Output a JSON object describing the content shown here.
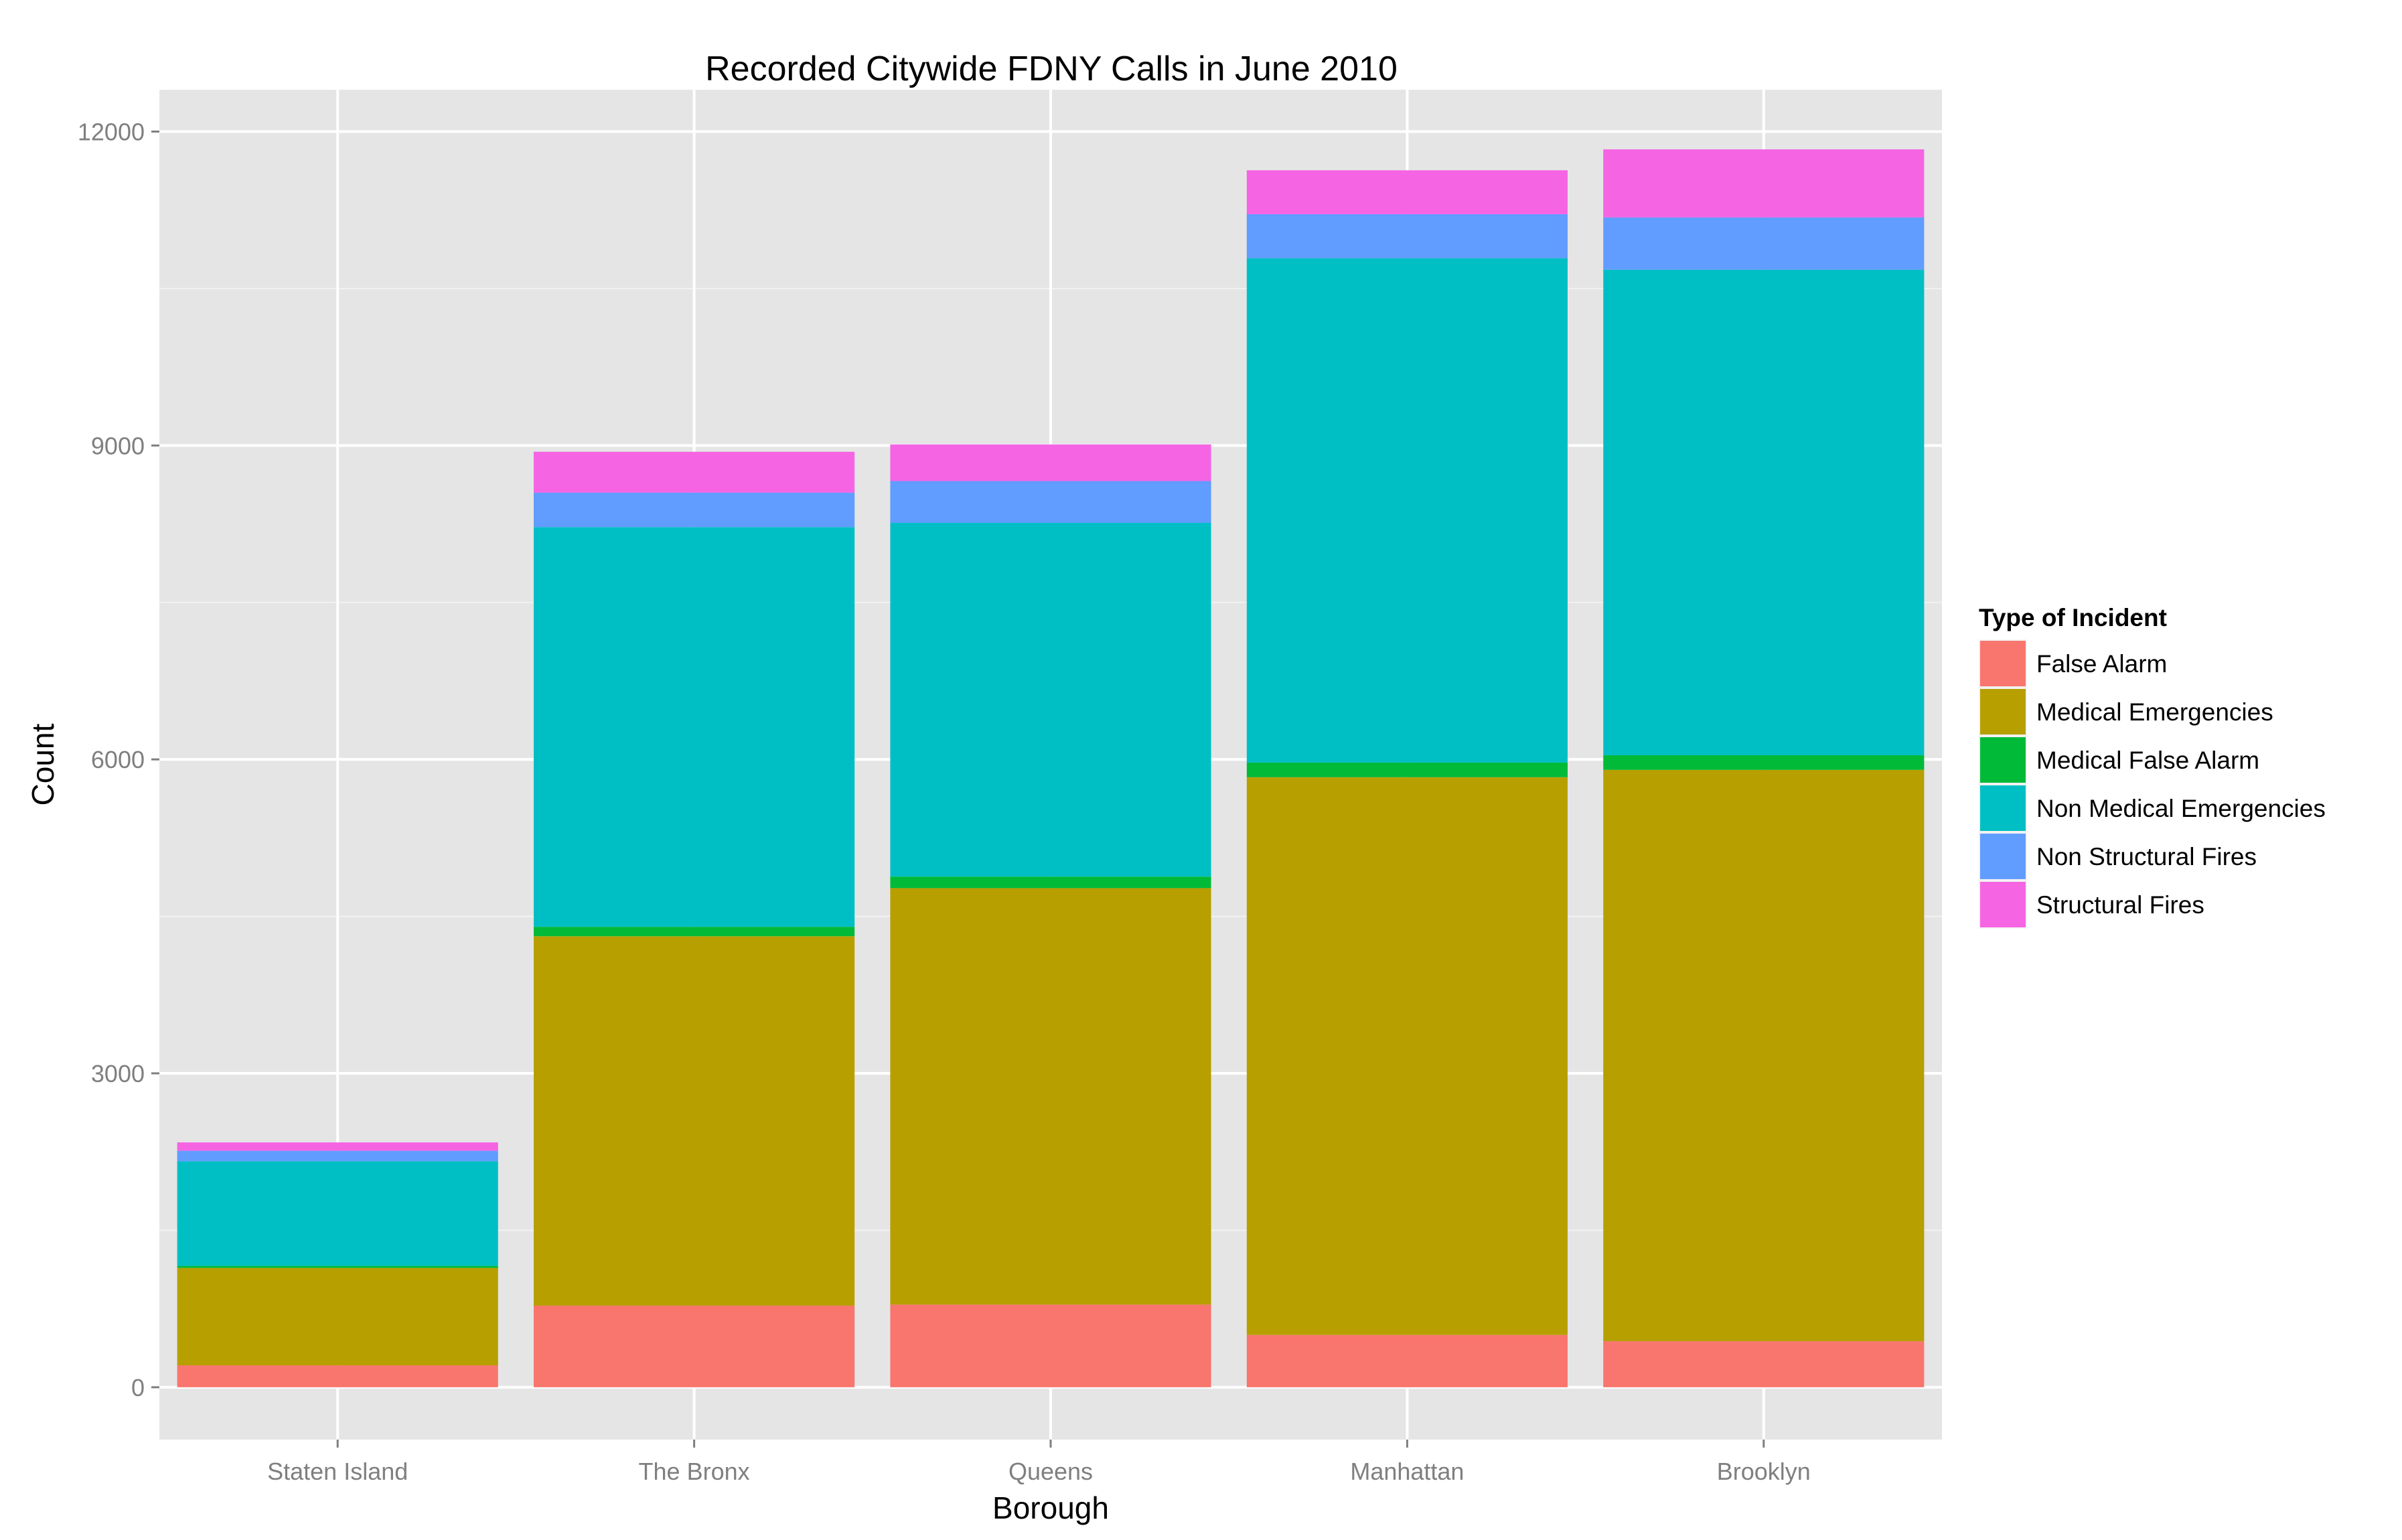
{
  "chart_data": {
    "type": "bar",
    "stacked": true,
    "title": "Recorded Citywide FDNY Calls in June 2010",
    "xlabel": "Borough",
    "ylabel": "Count",
    "ylim": [
      -500,
      12400
    ],
    "yticks": [
      0,
      3000,
      6000,
      9000,
      12000
    ],
    "grid": true,
    "legend_position": "right",
    "legend_title": "Type of Incident",
    "categories": [
      "Staten Island",
      "The Bronx",
      "Queens",
      "Manhattan",
      "Brooklyn"
    ],
    "series": [
      {
        "name": "False Alarm",
        "color": "#F8766D",
        "values": [
          210,
          780,
          790,
          500,
          440
        ]
      },
      {
        "name": "Medical Emergencies",
        "color": "#B79F00",
        "values": [
          930,
          3530,
          3980,
          5330,
          5460
        ]
      },
      {
        "name": "Medical False Alarm",
        "color": "#00BA38",
        "values": [
          20,
          90,
          110,
          140,
          140
        ]
      },
      {
        "name": "Non Medical Emergencies",
        "color": "#00BFC4",
        "values": [
          1000,
          3820,
          3380,
          4820,
          4640
        ]
      },
      {
        "name": "Non Structural Fires",
        "color": "#619CFF",
        "values": [
          100,
          330,
          400,
          420,
          500
        ]
      },
      {
        "name": "Structural Fires",
        "color": "#F564E3",
        "values": [
          80,
          390,
          350,
          420,
          650
        ]
      }
    ]
  }
}
